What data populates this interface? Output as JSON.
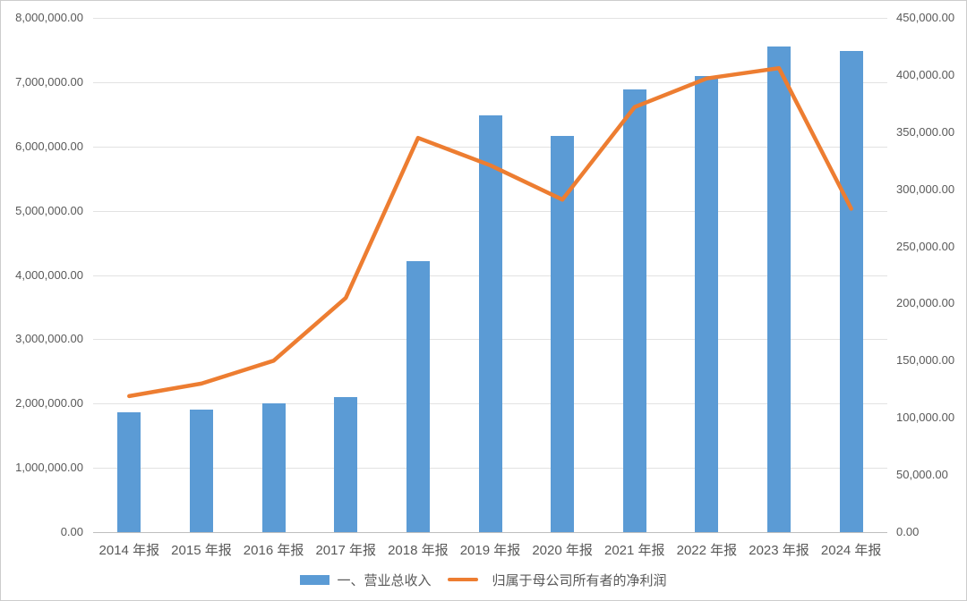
{
  "chart_data": {
    "type": "bar+line combo",
    "categories": [
      "2014 年报",
      "2015 年报",
      "2016 年报",
      "2017 年报",
      "2018 年报",
      "2019 年报",
      "2020 年报",
      "2021 年报",
      "2022 年报",
      "2023 年报",
      "2024 年报"
    ],
    "series": [
      {
        "name": "一、营业总收入",
        "type": "bar",
        "axis": "left",
        "color": "#5b9bd5",
        "values": [
          1860000,
          1900000,
          2000000,
          2100000,
          4210000,
          6480000,
          6170000,
          6890000,
          7100000,
          7550000,
          7490000
        ]
      },
      {
        "name": "归属于母公司所有者的净利润",
        "type": "line",
        "axis": "right",
        "color": "#ed7d31",
        "values": [
          119000,
          130000,
          150000,
          205000,
          345000,
          321000,
          291000,
          372000,
          397000,
          406000,
          283000
        ]
      }
    ],
    "left_axis": {
      "min": 0,
      "max": 8000000,
      "step": 1000000,
      "tick_labels": [
        "8,000,000.00",
        "7,000,000.00",
        "6,000,000.00",
        "5,000,000.00",
        "4,000,000.00",
        "3,000,000.00",
        "2,000,000.00",
        "1,000,000.00",
        "0.00"
      ]
    },
    "right_axis": {
      "min": 0,
      "max": 450000,
      "step": 50000,
      "tick_labels": [
        "450,000.00",
        "400,000.00",
        "350,000.00",
        "300,000.00",
        "250,000.00",
        "200,000.00",
        "150,000.00",
        "100,000.00",
        "50,000.00",
        "0.00"
      ]
    },
    "title": "",
    "grid": "horizontal",
    "legend_position": "bottom"
  }
}
